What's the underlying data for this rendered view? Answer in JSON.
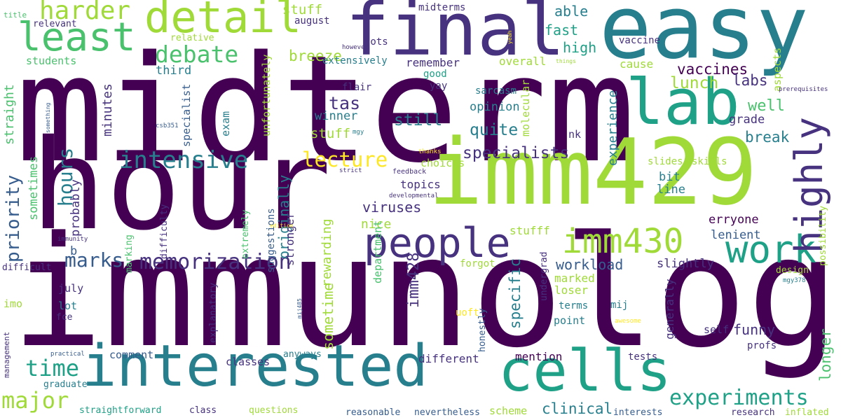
{
  "palette": {
    "dark_purple": "#440154",
    "indigo": "#46327e",
    "slate_blue": "#365c8d",
    "steel_teal": "#277f8e",
    "teal": "#1fa187",
    "green": "#4ac16d",
    "lime": "#a0da39",
    "yellow": "#fde725"
  },
  "words": [
    {
      "text": "midterm",
      "color": "dark_purple"
    },
    {
      "text": "immunology",
      "color": "dark_purple"
    },
    {
      "text": "hour",
      "color": "dark_purple"
    },
    {
      "text": "easy",
      "color": "steel_teal"
    },
    {
      "text": "final",
      "color": "indigo"
    },
    {
      "text": "imm429",
      "color": "lime"
    },
    {
      "text": "interested",
      "color": "steel_teal"
    },
    {
      "text": "lab",
      "color": "teal"
    },
    {
      "text": "cells",
      "color": "teal"
    },
    {
      "text": "people",
      "color": "indigo"
    },
    {
      "text": "work",
      "color": "teal"
    },
    {
      "text": "detail",
      "color": "lime"
    },
    {
      "text": "least",
      "color": "green"
    },
    {
      "text": "highly",
      "color": "indigo"
    },
    {
      "text": "imm430",
      "color": "lime"
    },
    {
      "text": "experiments",
      "color": "teal"
    },
    {
      "text": "memorization",
      "color": "indigo"
    },
    {
      "text": "intensive",
      "color": "steel_teal"
    },
    {
      "text": "time",
      "color": "teal"
    },
    {
      "text": "major",
      "color": "lime"
    },
    {
      "text": "harder",
      "color": "lime"
    },
    {
      "text": "debate",
      "color": "green"
    },
    {
      "text": "lecture",
      "color": "yellow"
    },
    {
      "text": "specialists",
      "color": "indigo"
    },
    {
      "text": "marks",
      "color": "slate_blue"
    },
    {
      "text": "hours",
      "color": "steel_teal"
    },
    {
      "text": "priority",
      "color": "slate_blue"
    },
    {
      "text": "vaccines",
      "color": "dark_purple"
    },
    {
      "text": "viruses",
      "color": "indigo"
    },
    {
      "text": "clinical",
      "color": "steel_teal"
    },
    {
      "text": "quite",
      "color": "steel_teal"
    },
    {
      "text": "still",
      "color": "steel_teal"
    },
    {
      "text": "tas",
      "color": "indigo"
    },
    {
      "text": "lunch",
      "color": "lime"
    },
    {
      "text": "labs",
      "color": "indigo"
    },
    {
      "text": "well",
      "color": "green"
    },
    {
      "text": "break",
      "color": "steel_teal"
    },
    {
      "text": "workload",
      "color": "slate_blue"
    },
    {
      "text": "imm428",
      "color": "indigo"
    },
    {
      "text": "specific",
      "color": "steel_teal"
    },
    {
      "text": "longer",
      "color": "green"
    },
    {
      "text": "breeze",
      "color": "lime"
    },
    {
      "text": "stuff",
      "color": "lime"
    },
    {
      "text": "stuff",
      "color": "lime"
    },
    {
      "text": "stufff",
      "color": "lime"
    },
    {
      "text": "able",
      "color": "steel_teal"
    },
    {
      "text": "fast",
      "color": "teal"
    },
    {
      "text": "high",
      "color": "teal"
    },
    {
      "text": "funny",
      "color": "indigo"
    },
    {
      "text": "sometime",
      "color": "lime"
    },
    {
      "text": "originally",
      "color": "steel_teal"
    },
    {
      "text": "rewarding",
      "color": "lime"
    },
    {
      "text": "nice",
      "color": "lime"
    },
    {
      "text": "winner",
      "color": "steel_teal"
    },
    {
      "text": "opinion",
      "color": "steel_teal"
    },
    {
      "text": "topics",
      "color": "indigo"
    },
    {
      "text": "choices",
      "color": "lime"
    },
    {
      "text": "bit",
      "color": "steel_teal"
    },
    {
      "text": "erryone",
      "color": "dark_purple"
    },
    {
      "text": "line",
      "color": "steel_teal"
    },
    {
      "text": "lenient",
      "color": "slate_blue"
    },
    {
      "text": "slightly",
      "color": "indigo"
    },
    {
      "text": "grade",
      "color": "indigo"
    },
    {
      "text": "experience",
      "color": "steel_teal"
    },
    {
      "text": "cause",
      "color": "lime"
    },
    {
      "text": "overall",
      "color": "lime"
    },
    {
      "text": "remember",
      "color": "indigo"
    },
    {
      "text": "extensively",
      "color": "steel_teal"
    },
    {
      "text": "students",
      "color": "green"
    },
    {
      "text": "third",
      "color": "steel_teal"
    },
    {
      "text": "minutes",
      "color": "indigo"
    },
    {
      "text": "straight",
      "color": "green"
    },
    {
      "text": "sometimes",
      "color": "green"
    },
    {
      "text": "probably",
      "color": "indigo"
    },
    {
      "text": "b",
      "color": "slate_blue"
    },
    {
      "text": "midterms",
      "color": "indigo"
    },
    {
      "text": "august",
      "color": "indigo"
    },
    {
      "text": "lots",
      "color": "indigo"
    },
    {
      "text": "flair",
      "color": "indigo"
    },
    {
      "text": "yay",
      "color": "indigo"
    },
    {
      "text": "sarcasm",
      "color": "steel_teal"
    },
    {
      "text": "good",
      "color": "teal"
    },
    {
      "text": "vaccine",
      "color": "indigo"
    },
    {
      "text": "aspects",
      "color": "lime"
    },
    {
      "text": "slides",
      "color": "lime"
    },
    {
      "text": "skills",
      "color": "lime"
    },
    {
      "text": "unfortunately",
      "color": "lime"
    },
    {
      "text": "specialist",
      "color": "slate_blue"
    },
    {
      "text": "exam",
      "color": "steel_teal"
    },
    {
      "text": "molecular",
      "color": "lime"
    },
    {
      "text": "nk",
      "color": "indigo"
    },
    {
      "text": "marked",
      "color": "lime"
    },
    {
      "text": "loser",
      "color": "lime"
    },
    {
      "text": "terms",
      "color": "steel_teal"
    },
    {
      "text": "point",
      "color": "steel_teal"
    },
    {
      "text": "mij",
      "color": "steel_teal"
    },
    {
      "text": "generally",
      "color": "indigo"
    },
    {
      "text": "undergrad",
      "color": "indigo"
    },
    {
      "text": "uoft",
      "color": "yellow"
    },
    {
      "text": "honestly",
      "color": "slate_blue"
    },
    {
      "text": "self",
      "color": "indigo"
    },
    {
      "text": "profs",
      "color": "indigo"
    },
    {
      "text": "tests",
      "color": "indigo"
    },
    {
      "text": "mention",
      "color": "dark_purple"
    },
    {
      "text": "different",
      "color": "indigo"
    },
    {
      "text": "scheme",
      "color": "lime"
    },
    {
      "text": "interests",
      "color": "slate_blue"
    },
    {
      "text": "research",
      "color": "indigo"
    },
    {
      "text": "inflated",
      "color": "lime"
    },
    {
      "text": "reasonable",
      "color": "slate_blue"
    },
    {
      "text": "nevertheless",
      "color": "slate_blue"
    },
    {
      "text": "department",
      "color": "green"
    },
    {
      "text": "forgot",
      "color": "lime"
    },
    {
      "text": "stronger",
      "color": "indigo"
    },
    {
      "text": "suggestions",
      "color": "slate_blue"
    },
    {
      "text": "anyways",
      "color": "steel_teal"
    },
    {
      "text": "classes",
      "color": "indigo"
    },
    {
      "text": "comment",
      "color": "slate_blue"
    },
    {
      "text": "lot",
      "color": "steel_teal"
    },
    {
      "text": "fce",
      "color": "indigo"
    },
    {
      "text": "july",
      "color": "indigo"
    },
    {
      "text": "imo",
      "color": "lime"
    },
    {
      "text": "difficult",
      "color": "indigo"
    },
    {
      "text": "graduate",
      "color": "steel_teal"
    },
    {
      "text": "straightforward",
      "color": "teal"
    },
    {
      "text": "class",
      "color": "indigo"
    },
    {
      "text": "questions",
      "color": "lime"
    },
    {
      "text": "management",
      "color": "indigo"
    },
    {
      "text": "practical",
      "color": "slate_blue"
    },
    {
      "text": "explanatory",
      "color": "indigo"
    },
    {
      "text": "marking",
      "color": "green"
    },
    {
      "text": "extremely",
      "color": "green"
    },
    {
      "text": "difficulty",
      "color": "indigo"
    },
    {
      "text": "immunity",
      "color": "indigo"
    },
    {
      "text": "edition",
      "color": "yellow"
    },
    {
      "text": "developmental",
      "color": "indigo"
    },
    {
      "text": "feedback",
      "color": "indigo"
    },
    {
      "text": "strict",
      "color": "indigo"
    },
    {
      "text": "thanks",
      "color": "yellow"
    },
    {
      "text": "title",
      "color": "green"
    },
    {
      "text": "relevant",
      "color": "indigo"
    },
    {
      "text": "relative",
      "color": "lime"
    },
    {
      "text": "however",
      "color": "indigo"
    },
    {
      "text": "csb351",
      "color": "slate_blue"
    },
    {
      "text": "mgy",
      "color": "steel_teal"
    },
    {
      "text": "something",
      "color": "slate_blue"
    },
    {
      "text": "things",
      "color": "lime"
    },
    {
      "text": "yeah",
      "color": "yellow"
    },
    {
      "text": "prerequisites",
      "color": "indigo"
    },
    {
      "text": "possibility",
      "color": "lime"
    },
    {
      "text": "design",
      "color": "lime"
    },
    {
      "text": "mgy378",
      "color": "steel_teal"
    },
    {
      "text": "awesome",
      "color": "yellow"
    },
    {
      "text": "mij485",
      "color": "slate_blue"
    }
  ]
}
